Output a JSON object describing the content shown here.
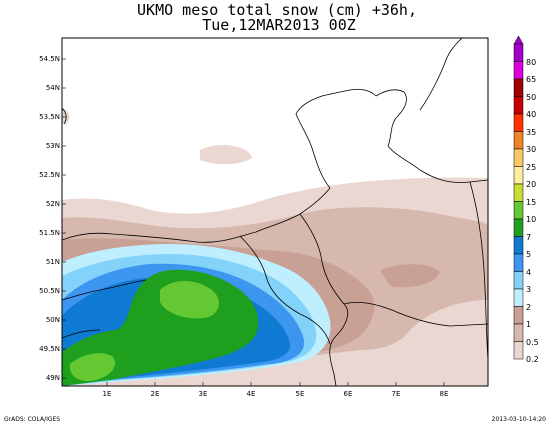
{
  "title": {
    "line1": "UKMO meso total snow (cm) +36h,",
    "line2": "Tue,12MAR2013 00Z"
  },
  "axes": {
    "lat_labels": [
      "54.5N",
      "54N",
      "53.5N",
      "53N",
      "52.5N",
      "52N",
      "51.5N",
      "51N",
      "50.5N",
      "50N",
      "49.5N",
      "49N"
    ],
    "lon_labels": [
      "1E",
      "2E",
      "3E",
      "4E",
      "5E",
      "6E",
      "7E",
      "8E"
    ]
  },
  "colorbar": {
    "levels": [
      "80",
      "65",
      "50",
      "40",
      "35",
      "30",
      "25",
      "20",
      "15",
      "10",
      "7",
      "5",
      "4",
      "3",
      "2",
      "1",
      "0.5",
      "0.2"
    ],
    "colors": [
      "#a000c8",
      "#dc00dc",
      "#a00000",
      "#c80000",
      "#ff3200",
      "#f08228",
      "#fac864",
      "#ffee9e",
      "#c8dc32",
      "#64c832",
      "#1ea01e",
      "#0f7ad2",
      "#3c96f0",
      "#82d2fa",
      "#bfefff",
      "#c9a094",
      "#d6b8ae",
      "#ebd7d1"
    ]
  },
  "map": {
    "background": "#ffffff",
    "border_color": "#000000"
  },
  "footer": {
    "left": "GrADS: COLA/IGES",
    "right": "2013-03-10-14:20"
  }
}
